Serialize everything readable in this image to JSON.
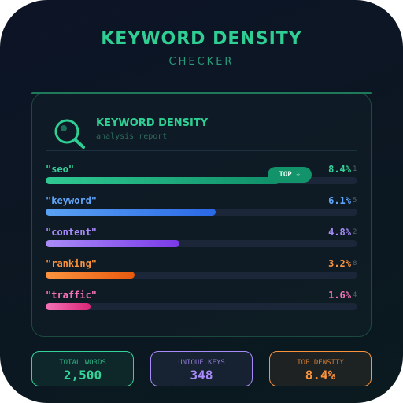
{
  "header": {
    "title": "KEYWORD DENSITY",
    "subtitle": "CHECKER"
  },
  "card": {
    "title": "KEYWORD DENSITY",
    "subtitle": "analysis report",
    "badge": "TOP ☆"
  },
  "keywords": [
    {
      "name": "\"seo\"",
      "value": 8.4,
      "value_label": "8.4%",
      "count": 1,
      "color": "#34d399",
      "bar": [
        "#2fc993",
        "#0f8f68"
      ]
    },
    {
      "name": "\"keyword\"",
      "value": 6.1,
      "value_label": "6.1%",
      "count": 5,
      "color": "#60a5fa",
      "bar": [
        "#5aa2f3",
        "#2a68e6"
      ]
    },
    {
      "name": "\"content\"",
      "value": 4.8,
      "value_label": "4.8%",
      "count": 2,
      "color": "#a78bfa",
      "bar": [
        "#a98cf7",
        "#7a3ae8"
      ]
    },
    {
      "name": "\"ranking\"",
      "value": 3.2,
      "value_label": "3.2%",
      "count": 8,
      "color": "#fb923c",
      "bar": [
        "#fb9440",
        "#e85a0e"
      ]
    },
    {
      "name": "\"traffic\"",
      "value": 1.6,
      "value_label": "1.6%",
      "count": 4,
      "color": "#f472b6",
      "bar": [
        "#f472b6",
        "#db2777"
      ]
    }
  ],
  "stats": [
    {
      "label": "TOTAL WORDS",
      "value": "2,500",
      "color": "#34d399"
    },
    {
      "label": "UNIQUE KEYS",
      "value": "348",
      "color": "#a78bfa"
    },
    {
      "label": "TOP DENSITY",
      "value": "8.4%",
      "color": "#fb923c"
    }
  ]
}
